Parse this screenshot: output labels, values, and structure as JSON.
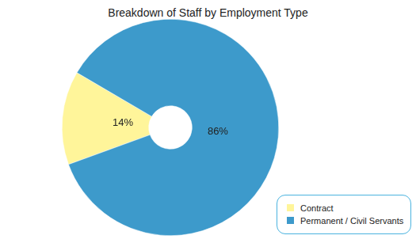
{
  "chart_data": {
    "type": "doughnut",
    "title": "Breakdown of Staff by Employment Type",
    "categories": [
      "Contract",
      "Permanent / Civil Servants"
    ],
    "values": [
      14,
      86
    ],
    "value_labels": [
      "14%",
      "86%"
    ],
    "colors": [
      "#fff59a",
      "#3d9acb"
    ],
    "data_labels": true,
    "legend": "bottom-right"
  }
}
